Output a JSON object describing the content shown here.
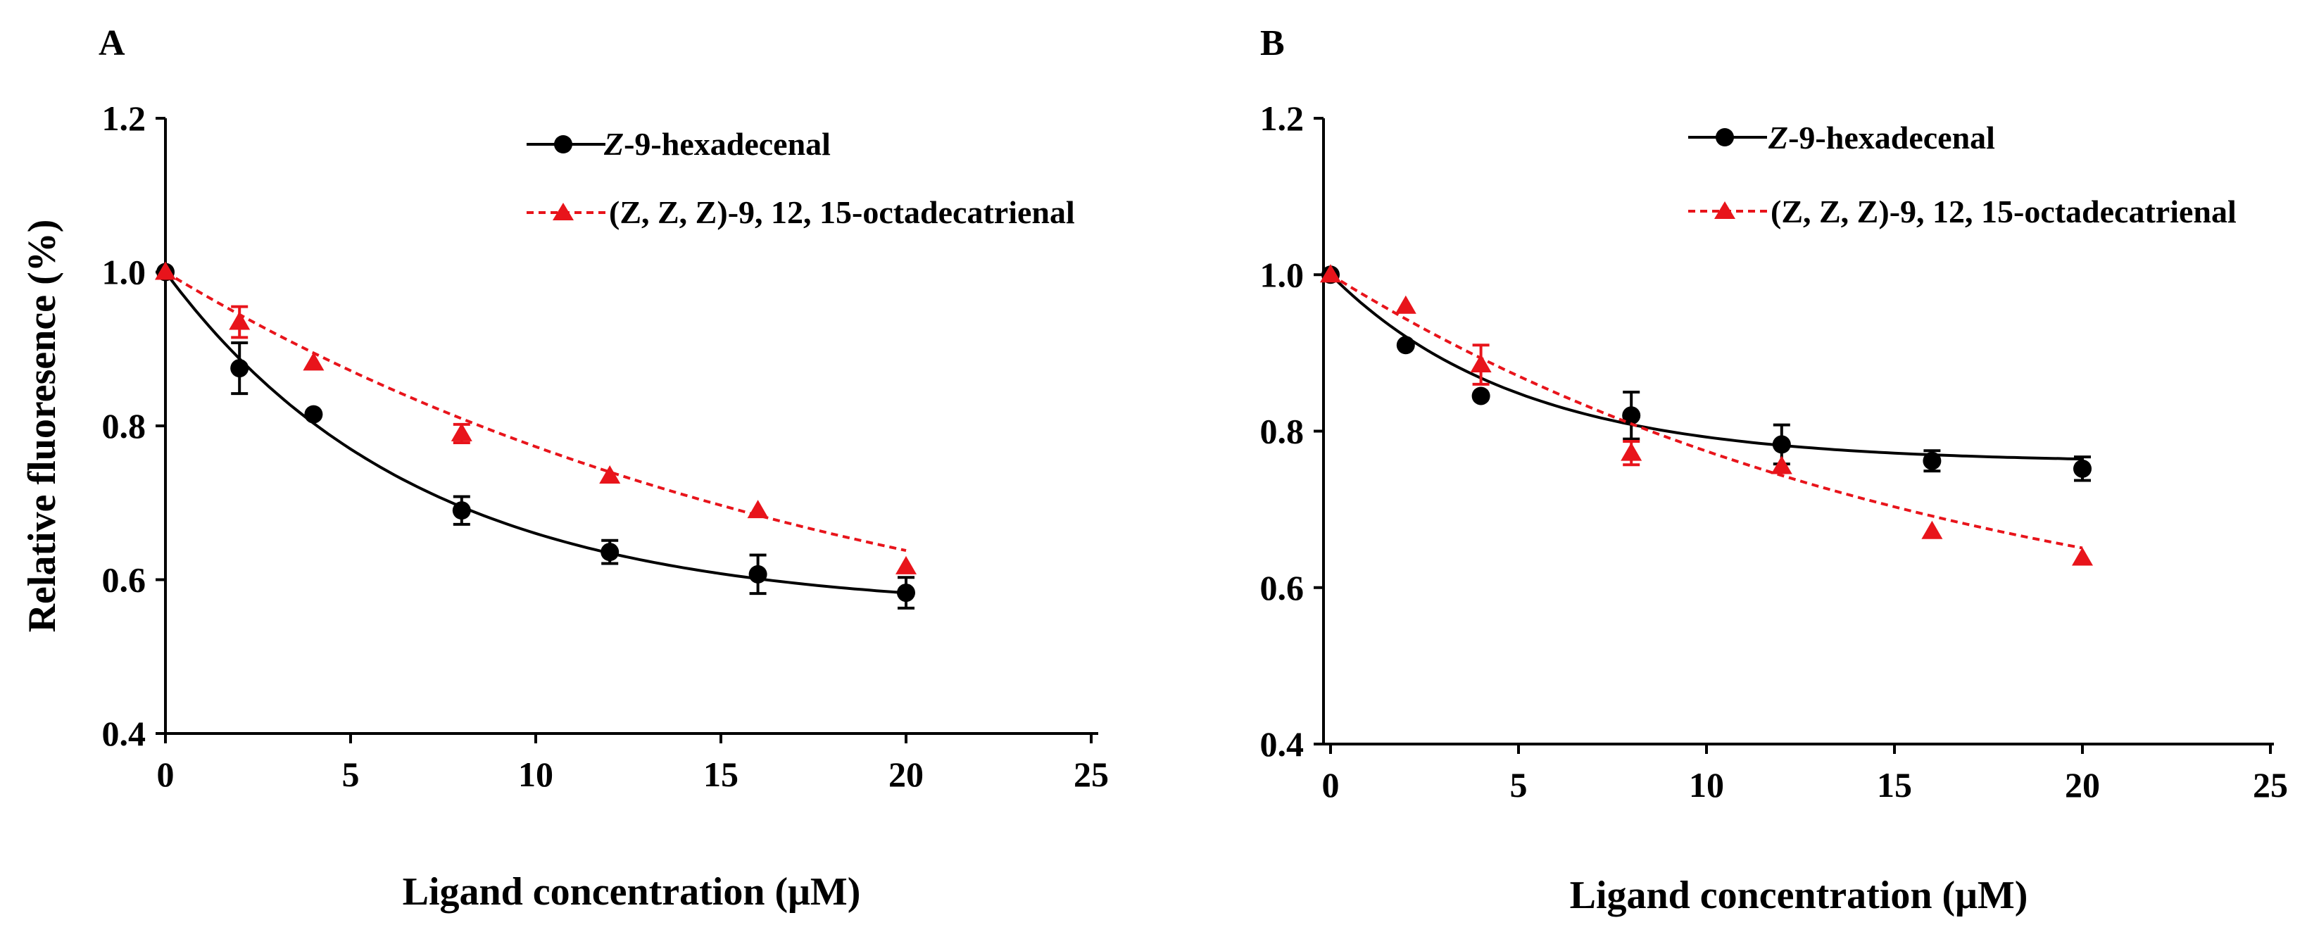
{
  "chart_data": [
    {
      "type": "line",
      "panel_label": "A",
      "xlabel": "Ligand concentration (μM)",
      "ylabel": "Relative fluoresence (%)",
      "xlim": [
        0,
        25
      ],
      "ylim": [
        0.4,
        1.2
      ],
      "xticks": [
        "0",
        "5",
        "10",
        "15",
        "20",
        "25"
      ],
      "yticks": [
        "0.4",
        "0.6",
        "0.8",
        "1.0",
        "1.2"
      ],
      "grid": false,
      "legend_position": "top-right",
      "series": [
        {
          "name": "Z-9-hexadecenal",
          "name_prefix": "Z",
          "name_rest": "-9-hexadecenal",
          "color": "#000000",
          "marker": "circle",
          "line_style": "solid",
          "x": [
            0,
            2,
            4,
            8,
            12,
            16,
            20
          ],
          "y": [
            1.0,
            0.875,
            0.815,
            0.69,
            0.636,
            0.607,
            0.583
          ],
          "error": [
            0.0,
            0.033,
            0.0,
            0.018,
            0.015,
            0.025,
            0.02
          ],
          "fit": {
            "model": "exp_decay",
            "plateau": 0.56,
            "span": 0.44,
            "k": 0.148
          }
        },
        {
          "name": "(Z, Z, Z)-9, 12, 15-octadecatrienal",
          "name_prefix": "(Z, Z, Z)",
          "name_rest": "-9, 12, 15-octadecatrienal",
          "color": "#e8141b",
          "marker": "triangle",
          "line_style": "dashed",
          "x": [
            0,
            2,
            4,
            8,
            12,
            16,
            20
          ],
          "y": [
            1.0,
            0.935,
            0.882,
            0.79,
            0.735,
            0.69,
            0.617
          ],
          "error": [
            0.0,
            0.02,
            0.0,
            0.012,
            0.0,
            0.0,
            0.0
          ],
          "fit": {
            "model": "exp_decay",
            "plateau": 0.44,
            "span": 0.56,
            "k": 0.052
          }
        }
      ]
    },
    {
      "type": "line",
      "panel_label": "B",
      "xlabel": "Ligand concentration (μM)",
      "ylabel": "",
      "xlim": [
        0,
        25
      ],
      "ylim": [
        0.4,
        1.2
      ],
      "xticks": [
        "0",
        "5",
        "10",
        "15",
        "20",
        "25"
      ],
      "yticks": [
        "0.4",
        "0.6",
        "0.8",
        "1.0",
        "1.2"
      ],
      "grid": false,
      "legend_position": "top-right",
      "series": [
        {
          "name": "Z-9-hexadecenal",
          "name_prefix": "Z",
          "name_rest": "-9-hexadecenal",
          "color": "#000000",
          "marker": "circle",
          "line_style": "solid",
          "x": [
            0,
            2,
            4,
            8,
            12,
            16,
            20
          ],
          "y": [
            1.0,
            0.91,
            0.845,
            0.82,
            0.783,
            0.762,
            0.752
          ],
          "error": [
            0.0,
            0.0,
            0.0,
            0.03,
            0.025,
            0.013,
            0.015
          ],
          "fit": {
            "model": "exp_decay",
            "plateau": 0.76,
            "span": 0.24,
            "k": 0.2
          }
        },
        {
          "name": "(Z, Z, Z)-9, 12, 15-octadecatrienal",
          "name_prefix": "(Z, Z, Z)",
          "name_rest": "-9, 12, 15-octadecatrienal",
          "color": "#e8141b",
          "marker": "triangle",
          "line_style": "dashed",
          "x": [
            0,
            2,
            4,
            8,
            12,
            16,
            20
          ],
          "y": [
            1.0,
            0.96,
            0.885,
            0.772,
            0.755,
            0.672,
            0.638
          ],
          "error": [
            0.0,
            0.0,
            0.025,
            0.015,
            0.0,
            0.0,
            0.0
          ],
          "fit": {
            "model": "exp_decay",
            "plateau": 0.5,
            "span": 0.5,
            "k": 0.06
          }
        }
      ]
    }
  ]
}
